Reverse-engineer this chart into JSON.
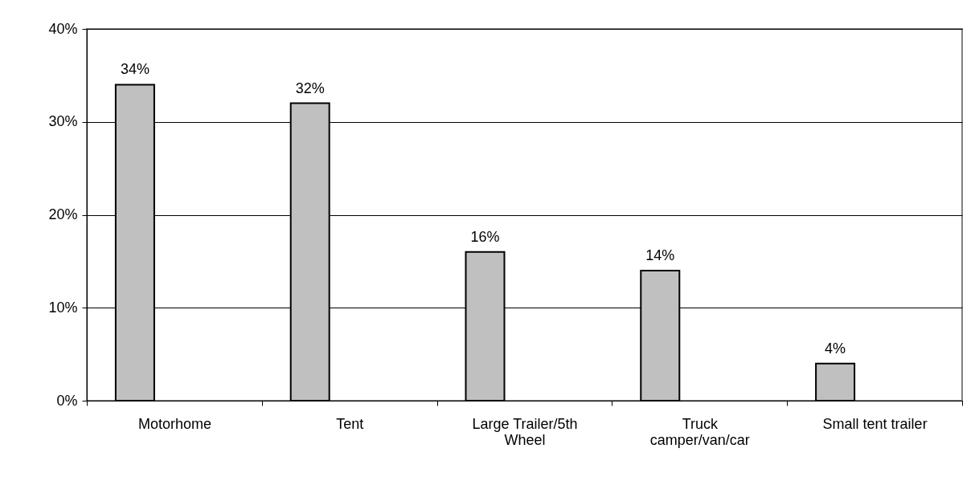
{
  "chart_data": {
    "type": "bar",
    "categories": [
      "Motorhome",
      "Tent",
      "Large Trailer/5th\nWheel",
      "Truck\ncamper/van/car",
      "Small tent trailer"
    ],
    "values": [
      34,
      32,
      16,
      14,
      4
    ],
    "value_labels": [
      "34%",
      "32%",
      "16%",
      "14%",
      "4%"
    ],
    "color": "#c0c0c0",
    "ylim": [
      0,
      40
    ],
    "yticks": [
      {
        "value": 0,
        "label": "0%"
      },
      {
        "value": 10,
        "label": "10%"
      },
      {
        "value": 20,
        "label": "20%"
      },
      {
        "value": 30,
        "label": "30%"
      },
      {
        "value": 40,
        "label": "40%"
      }
    ],
    "grid": "y"
  }
}
